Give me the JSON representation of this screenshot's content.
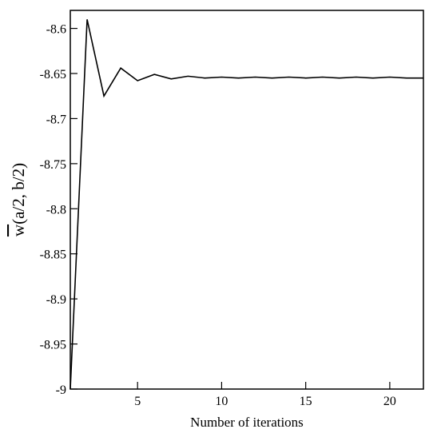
{
  "chart_data": {
    "type": "line",
    "xlabel": "Number of iterations",
    "ylabel_overbar": "w",
    "ylabel_rest": "(a/2, b/2)",
    "xlim": [
      1,
      22
    ],
    "ylim": [
      -9.0,
      -8.58
    ],
    "xticks": [
      5,
      10,
      15,
      20
    ],
    "yticks": [
      -9.0,
      -8.95,
      -8.9,
      -8.85,
      -8.8,
      -8.75,
      -8.7,
      -8.65,
      -8.6
    ],
    "ytick_labels": [
      "-9",
      "-8.95",
      "-8.9",
      "-8.85",
      "-8.8",
      "-8.75",
      "-8.7",
      "-8.65",
      "-8.6"
    ],
    "xtick_labels": [
      "5",
      "10",
      "15",
      "20"
    ],
    "grid": false,
    "line_color": "#000000",
    "series": [
      {
        "x": [
          1,
          2,
          3,
          4,
          5,
          6,
          7,
          8,
          9,
          10,
          11,
          12,
          13,
          14,
          15,
          16,
          17,
          18,
          19,
          20,
          21,
          22
        ],
        "values": [
          -9.0,
          -8.59,
          -8.675,
          -8.644,
          -8.658,
          -8.651,
          -8.656,
          -8.653,
          -8.655,
          -8.654,
          -8.655,
          -8.654,
          -8.655,
          -8.654,
          -8.655,
          -8.654,
          -8.655,
          -8.654,
          -8.655,
          -8.654,
          -8.655,
          -8.655
        ]
      }
    ]
  }
}
